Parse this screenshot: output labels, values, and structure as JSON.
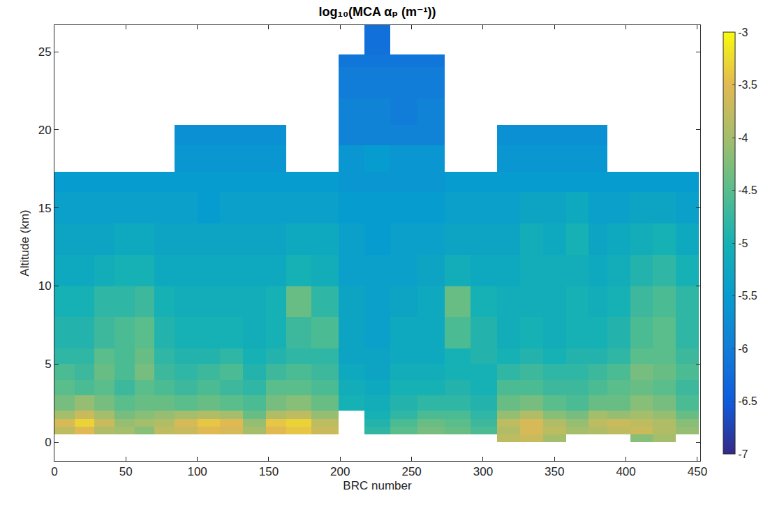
{
  "chart_data": {
    "type": "heatmap",
    "title": "log₁₀(MCA αₚ (m⁻¹))",
    "x_label": "BRC number",
    "y_label": "Altitude (km)",
    "x_edges": [
      0,
      14,
      28,
      42,
      56,
      70,
      84,
      100,
      116,
      132,
      148,
      162,
      180,
      199,
      217,
      235,
      254,
      273,
      291,
      310,
      326,
      342,
      358,
      374,
      387,
      403,
      419,
      435,
      451
    ],
    "y_edges": [
      0,
      0.5,
      1,
      1.5,
      2,
      3,
      4,
      5,
      6,
      8,
      10,
      12,
      14,
      16,
      17.3,
      19,
      20.3,
      22,
      24,
      24.8,
      26.7
    ],
    "z": [
      [
        null,
        null,
        null,
        null,
        null,
        null,
        null,
        null,
        null,
        null,
        null,
        null,
        null,
        null,
        null,
        null,
        null,
        null,
        null,
        -3.8,
        -3.7,
        -4.0,
        null,
        null,
        null,
        -4.2,
        -4.0,
        null
      ],
      [
        -3.8,
        -3.5,
        -3.9,
        -4.0,
        -4.2,
        -3.8,
        -3.7,
        -3.5,
        -3.6,
        -4.0,
        -3.5,
        -3.4,
        -3.7,
        null,
        -4.8,
        -4.5,
        -4.3,
        -4.4,
        -4.6,
        -3.9,
        -3.6,
        -3.8,
        -4.0,
        -3.9,
        -3.8,
        -3.7,
        -3.9,
        -4.1
      ],
      [
        -3.6,
        -3.3,
        -3.7,
        -4.1,
        -4.0,
        -3.9,
        -3.6,
        -3.4,
        -3.5,
        -4.1,
        -3.4,
        -3.3,
        -3.8,
        null,
        -4.9,
        -4.6,
        -4.4,
        -4.5,
        -4.7,
        -3.8,
        -3.6,
        -3.9,
        -4.1,
        -3.8,
        -3.7,
        -3.8,
        -3.9,
        -4.2
      ],
      [
        -4.0,
        -3.7,
        -4.0,
        -4.3,
        -4.2,
        -4.1,
        -4.0,
        -3.9,
        -4.0,
        -4.4,
        -3.9,
        -3.8,
        -4.1,
        null,
        -5.0,
        -4.8,
        -4.6,
        -4.6,
        -4.8,
        -4.1,
        -3.9,
        -4.2,
        -4.3,
        -4.0,
        -4.1,
        -4.0,
        -4.1,
        -4.4
      ],
      [
        -4.3,
        -4.1,
        -4.3,
        -4.5,
        -4.4,
        -4.4,
        -4.5,
        -4.4,
        -4.5,
        -4.6,
        -4.3,
        -4.2,
        -4.4,
        -5.0,
        -5.1,
        -4.9,
        -4.8,
        -4.8,
        -4.9,
        -4.4,
        -4.3,
        -4.5,
        -4.6,
        -4.4,
        -4.4,
        -4.2,
        -4.3,
        -4.6
      ],
      [
        -4.5,
        -4.6,
        -4.5,
        -4.7,
        -4.5,
        -4.6,
        -4.7,
        -4.6,
        -4.7,
        -4.8,
        -4.5,
        -4.5,
        -4.6,
        -5.1,
        -5.2,
        -5.0,
        -5.0,
        -4.9,
        -5.0,
        -4.6,
        -4.6,
        -4.7,
        -4.7,
        -4.6,
        -4.5,
        -4.4,
        -4.5,
        -4.7
      ],
      [
        -4.6,
        -4.7,
        -4.4,
        -4.6,
        -4.3,
        -4.7,
        -4.8,
        -4.7,
        -4.6,
        -4.9,
        -4.7,
        -4.6,
        -4.7,
        -5.2,
        -5.3,
        -5.1,
        -5.1,
        -5.0,
        -5.0,
        -4.8,
        -4.7,
        -4.8,
        -4.8,
        -4.7,
        -4.6,
        -4.3,
        -4.4,
        -4.6
      ],
      [
        -4.8,
        -4.8,
        -4.5,
        -4.6,
        -4.4,
        -4.8,
        -4.9,
        -4.9,
        -4.8,
        -5.0,
        -4.9,
        -4.8,
        -4.8,
        -5.3,
        -5.3,
        -5.2,
        -5.2,
        -5.0,
        -4.9,
        -5.0,
        -4.9,
        -5.0,
        -4.9,
        -4.9,
        -4.8,
        -4.5,
        -4.5,
        -4.7
      ],
      [
        -4.9,
        -4.9,
        -4.7,
        -4.6,
        -4.5,
        -4.9,
        -5.0,
        -5.0,
        -5.0,
        -5.1,
        -5.0,
        -4.7,
        -4.6,
        -5.3,
        -5.4,
        -5.2,
        -5.2,
        -4.6,
        -4.9,
        -5.1,
        -5.0,
        -5.1,
        -5.0,
        -5.0,
        -4.9,
        -4.6,
        -4.5,
        -4.8
      ],
      [
        -5.0,
        -5.0,
        -4.8,
        -4.8,
        -4.7,
        -5.0,
        -5.1,
        -5.1,
        -5.1,
        -5.1,
        -5.0,
        -4.4,
        -4.8,
        -5.3,
        -5.4,
        -5.3,
        -5.2,
        -4.4,
        -5.0,
        -5.1,
        -5.1,
        -5.1,
        -5.0,
        -5.1,
        -5.0,
        -4.7,
        -4.6,
        -4.8
      ],
      [
        -5.2,
        -5.2,
        -5.1,
        -5.0,
        -5.0,
        -5.2,
        -5.2,
        -5.2,
        -5.2,
        -5.2,
        -5.2,
        -5.0,
        -5.1,
        -5.4,
        -5.4,
        -5.4,
        -5.3,
        -5.1,
        -5.2,
        -5.2,
        -5.1,
        -5.1,
        -5.1,
        -5.2,
        -5.1,
        -4.9,
        -4.8,
        -5.0
      ],
      [
        -5.3,
        -5.3,
        -5.3,
        -5.2,
        -5.2,
        -5.3,
        -5.3,
        -5.3,
        -5.3,
        -5.3,
        -5.3,
        -5.2,
        -5.2,
        -5.4,
        -5.5,
        -5.4,
        -5.4,
        -5.3,
        -5.3,
        -5.3,
        -5.1,
        -5.2,
        -5.0,
        -5.3,
        -5.2,
        -5.1,
        -5.0,
        -5.2
      ],
      [
        -5.4,
        -5.4,
        -5.4,
        -5.4,
        -5.4,
        -5.4,
        -5.4,
        -5.5,
        -5.4,
        -5.4,
        -5.4,
        -5.4,
        -5.4,
        -5.5,
        -5.5,
        -5.5,
        -5.5,
        -5.4,
        -5.4,
        -5.4,
        -5.3,
        -5.3,
        -5.2,
        -5.4,
        -5.4,
        -5.3,
        -5.3,
        -5.4
      ],
      [
        -5.5,
        -5.5,
        -5.5,
        -5.5,
        -5.5,
        -5.5,
        -5.5,
        -5.5,
        -5.5,
        -5.5,
        -5.5,
        -5.5,
        -5.5,
        -5.6,
        -5.6,
        -5.6,
        -5.6,
        -5.5,
        -5.5,
        -5.5,
        -5.5,
        -5.5,
        -5.5,
        -5.5,
        -5.5,
        -5.5,
        -5.5,
        -5.5
      ],
      [
        null,
        null,
        null,
        null,
        null,
        null,
        -5.6,
        -5.6,
        -5.6,
        -5.6,
        -5.6,
        null,
        null,
        -5.6,
        -5.5,
        -5.6,
        -5.6,
        null,
        null,
        -5.6,
        -5.6,
        -5.6,
        -5.6,
        -5.6,
        null,
        null,
        null,
        null
      ],
      [
        null,
        null,
        null,
        null,
        null,
        null,
        -5.7,
        -5.7,
        -5.7,
        -5.7,
        -5.7,
        null,
        null,
        -5.9,
        -5.9,
        -5.9,
        -5.9,
        null,
        null,
        -5.7,
        -5.7,
        -5.7,
        -5.7,
        -5.7,
        null,
        null,
        null,
        null
      ],
      [
        null,
        null,
        null,
        null,
        null,
        null,
        null,
        null,
        null,
        null,
        null,
        null,
        null,
        -5.9,
        -5.9,
        -6.0,
        -5.9,
        null,
        null,
        null,
        null,
        null,
        null,
        null,
        null,
        null,
        null,
        null
      ],
      [
        null,
        null,
        null,
        null,
        null,
        null,
        null,
        null,
        null,
        null,
        null,
        null,
        null,
        -6.0,
        -6.0,
        -6.0,
        -6.0,
        null,
        null,
        null,
        null,
        null,
        null,
        null,
        null,
        null,
        null,
        null
      ],
      [
        null,
        null,
        null,
        null,
        null,
        null,
        null,
        null,
        null,
        null,
        null,
        null,
        null,
        -6.1,
        -6.1,
        -6.1,
        -6.1,
        null,
        null,
        null,
        null,
        null,
        null,
        null,
        null,
        null,
        null,
        null
      ],
      [
        null,
        null,
        null,
        null,
        null,
        null,
        null,
        null,
        null,
        null,
        null,
        null,
        null,
        null,
        -6.2,
        null,
        null,
        null,
        null,
        null,
        null,
        null,
        null,
        null,
        null,
        null,
        null,
        null
      ]
    ],
    "xlim": [
      0,
      452
    ],
    "ylim": [
      -1.2,
      26.7
    ],
    "xticks": [
      0,
      50,
      100,
      150,
      200,
      250,
      300,
      350,
      400,
      450
    ],
    "yticks": [
      0,
      5,
      10,
      15,
      20,
      25
    ],
    "zlim": [
      -7,
      -3
    ],
    "zticks": [
      -3,
      -3.5,
      -4,
      -4.5,
      -5,
      -5.5,
      -6,
      -6.5,
      -7
    ],
    "grid": false
  }
}
